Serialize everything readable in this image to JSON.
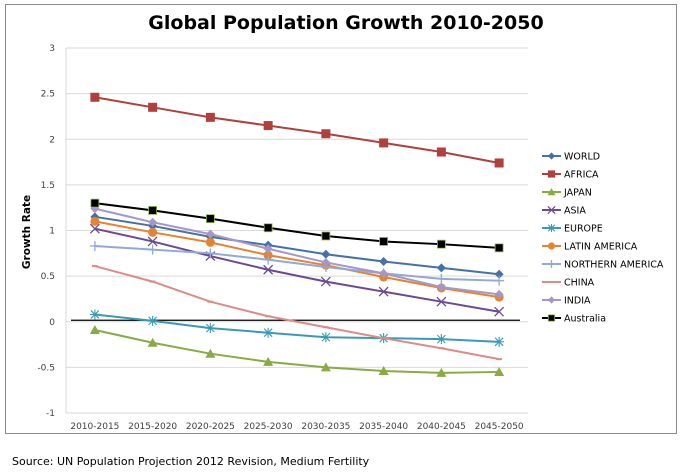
{
  "chart_data": {
    "type": "line",
    "title": "Global Population Growth 2010-2050",
    "xlabel": "",
    "ylabel": "Growth Rate",
    "ylim": [
      -1,
      3
    ],
    "yticks": [
      3,
      2.5,
      2,
      1.5,
      1,
      0.5,
      0,
      -0.5,
      -1
    ],
    "ytick_labels": [
      "3",
      "2.5",
      "2",
      "1.5",
      "1",
      "0.5",
      "0",
      "-0.5",
      "-1"
    ],
    "grid": true,
    "legend_position": "right",
    "categories": [
      "2010-2015",
      "2015-2020",
      "2020-2025",
      "2025-2030",
      "2030-2035",
      "2035-2040",
      "2040-2045",
      "2045-2050"
    ],
    "series": [
      {
        "name": "WORLD",
        "color": "#4472a8",
        "marker": "diamond",
        "values": [
          1.15,
          1.05,
          0.93,
          0.84,
          0.74,
          0.66,
          0.59,
          0.52
        ]
      },
      {
        "name": "AFRICA",
        "color": "#b0403c",
        "marker": "square",
        "values": [
          2.46,
          2.35,
          2.24,
          2.15,
          2.06,
          1.96,
          1.86,
          1.74
        ]
      },
      {
        "name": "JAPAN",
        "color": "#8aaa44",
        "marker": "triangle",
        "values": [
          -0.09,
          -0.23,
          -0.35,
          -0.44,
          -0.5,
          -0.54,
          -0.56,
          -0.55
        ]
      },
      {
        "name": "ASIA",
        "color": "#6b4a92",
        "marker": "x",
        "values": [
          1.02,
          0.88,
          0.72,
          0.57,
          0.44,
          0.33,
          0.22,
          0.11
        ]
      },
      {
        "name": "EUROPE",
        "color": "#3a9ab4",
        "marker": "star",
        "values": [
          0.08,
          0.01,
          -0.07,
          -0.12,
          -0.17,
          -0.18,
          -0.19,
          -0.22
        ]
      },
      {
        "name": "LATIN AMERICA",
        "color": "#e6832e",
        "marker": "circle",
        "values": [
          1.1,
          0.98,
          0.87,
          0.73,
          0.62,
          0.49,
          0.37,
          0.27
        ]
      },
      {
        "name": "NORTHERN AMERICA",
        "color": "#8fa9d8",
        "marker": "plus",
        "values": [
          0.83,
          0.79,
          0.75,
          0.68,
          0.6,
          0.53,
          0.47,
          0.45
        ]
      },
      {
        "name": "CHINA",
        "color": "#db8c8a",
        "marker": "dash",
        "values": [
          0.61,
          0.44,
          0.22,
          0.06,
          -0.06,
          -0.18,
          -0.29,
          -0.41
        ]
      },
      {
        "name": "INDIA",
        "color": "#a597c8",
        "marker": "diamond",
        "values": [
          1.24,
          1.09,
          0.96,
          0.8,
          0.65,
          0.53,
          0.38,
          0.3
        ]
      },
      {
        "name": "Australia",
        "color": "#000000",
        "marker": "square-outlined",
        "values": [
          1.3,
          1.22,
          1.13,
          1.03,
          0.94,
          0.88,
          0.85,
          0.81
        ]
      }
    ],
    "source_note": "Source: UN Population Projection 2012 Revision, Medium Fertility"
  }
}
